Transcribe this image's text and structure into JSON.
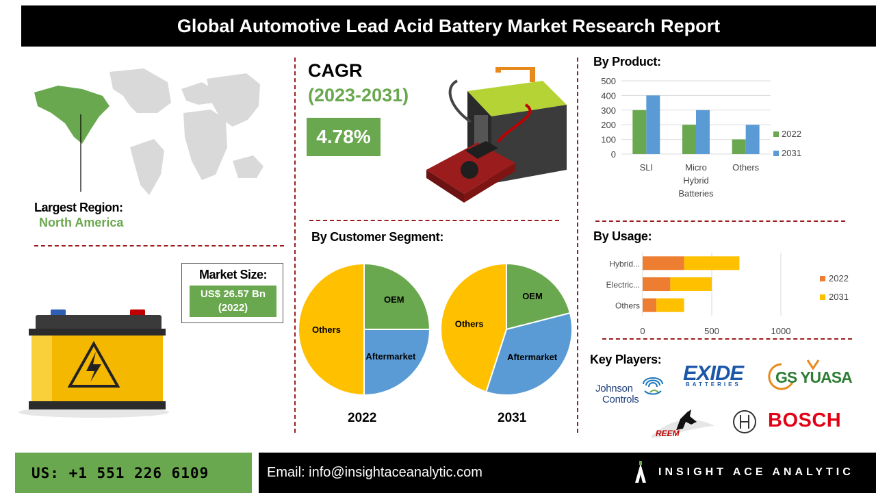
{
  "header": {
    "title": "Global Automotive Lead Acid Battery Market Research Report"
  },
  "cagr": {
    "label": "CAGR",
    "period": "(2023-2031)",
    "value": "4.78%"
  },
  "region": {
    "label": "Largest Region:",
    "value": "North America"
  },
  "market_size": {
    "label": "Market Size:",
    "value_line1": "US$ 26.57 Bn",
    "value_line2": "(2022)"
  },
  "sections": {
    "by_product": "By Product:",
    "by_usage": "By Usage:",
    "by_customer_segment": "By Customer Segment:",
    "key_players": "Key Players:"
  },
  "key_players": {
    "johnson_controls": [
      "Johnson",
      "Controls"
    ],
    "exide": "EXIDE",
    "exide_sub": "BATTERIES",
    "gs_yuasa": "GS YUASA",
    "reem": "REEM",
    "bosch": "BOSCH"
  },
  "footer": {
    "phone": "US: +1 551 226 6109",
    "email": "Email: info@insightaceanalytic.com",
    "brand": "INSIGHT ACE ANALYTIC"
  },
  "colors": {
    "green": "#6aa84f",
    "blue": "#5b9bd5",
    "orange": "#ed7d31",
    "yellow": "#ffc000",
    "dash_red": "#9b1c1c"
  },
  "chart_data": [
    {
      "id": "by_product",
      "type": "bar",
      "categories": [
        "SLI",
        "Micro Hybrid Batteries",
        "Others"
      ],
      "category_lines": [
        [
          "SLI"
        ],
        [
          "Micro",
          "Hybrid",
          "Batteries"
        ],
        [
          "Others"
        ]
      ],
      "series": [
        {
          "name": "2022",
          "values": [
            300,
            200,
            100
          ],
          "color": "#6aa84f"
        },
        {
          "name": "2031",
          "values": [
            400,
            300,
            200
          ],
          "color": "#5b9bd5"
        }
      ],
      "ylim": [
        0,
        500
      ],
      "yticks": [
        0,
        100,
        200,
        300,
        400,
        500
      ],
      "grid": true,
      "legend": "right"
    },
    {
      "id": "by_usage",
      "type": "bar",
      "orientation": "horizontal",
      "stacked": true,
      "categories": [
        "Hybrid...",
        "Electric...",
        "Others"
      ],
      "series": [
        {
          "name": "2022",
          "values": [
            300,
            200,
            100
          ],
          "color": "#ed7d31"
        },
        {
          "name": "2031",
          "values": [
            400,
            300,
            200
          ],
          "color": "#ffc000"
        }
      ],
      "xlim": [
        0,
        1000
      ],
      "xticks": [
        0,
        500,
        1000
      ],
      "grid": true,
      "legend": "right"
    },
    {
      "id": "customer_2022",
      "type": "pie",
      "title": "2022",
      "slices": [
        {
          "label": "OEM",
          "value": 25,
          "color": "#6aa84f"
        },
        {
          "label": "Aftermarket",
          "value": 25,
          "color": "#5b9bd5"
        },
        {
          "label": "Others",
          "value": 50,
          "color": "#ffc000"
        }
      ]
    },
    {
      "id": "customer_2031",
      "type": "pie",
      "title": "2031",
      "slices": [
        {
          "label": "OEM",
          "value": 21,
          "color": "#6aa84f"
        },
        {
          "label": "Aftermarket",
          "value": 34,
          "color": "#5b9bd5"
        },
        {
          "label": "Others",
          "value": 45,
          "color": "#ffc000"
        }
      ]
    }
  ]
}
